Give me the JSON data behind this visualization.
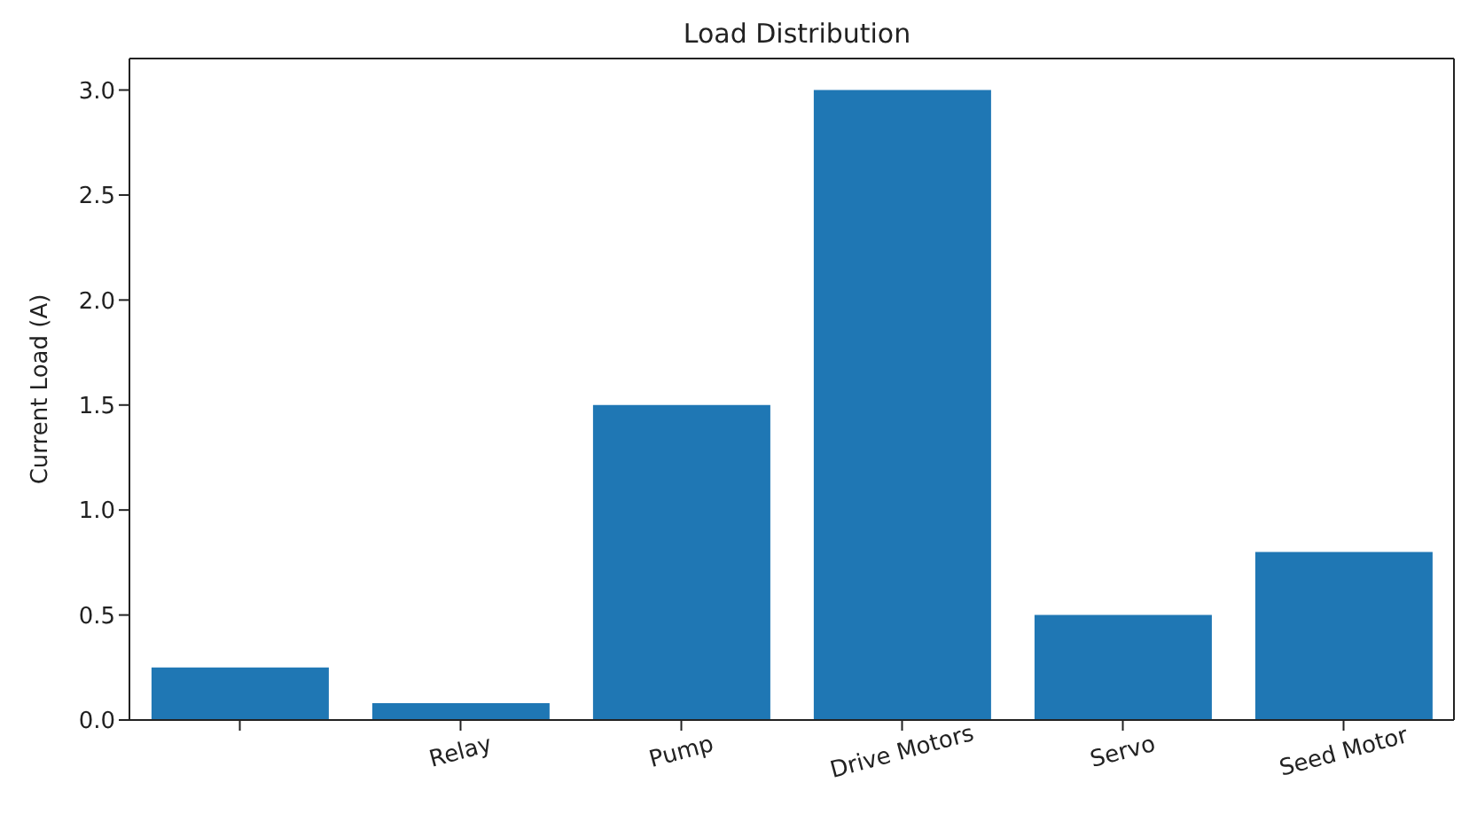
{
  "chart_data": {
    "type": "bar",
    "title": "Load Distribution",
    "ylabel": "Current Load (A)",
    "categories": [
      null,
      "Relay",
      "Pump",
      "Drive Motors",
      "Servo",
      "Seed Motor"
    ],
    "values": [
      0.25,
      0.08,
      1.5,
      3.0,
      0.5,
      0.8
    ],
    "color": "#1f77b4",
    "ylim": [
      0,
      3.15
    ],
    "yticks": [
      {
        "value": 0,
        "label": "0.0"
      },
      0.5,
      {
        "value": 1,
        "label": "1.0"
      },
      1.5,
      {
        "value": 2,
        "label": "2.0"
      },
      2.5,
      {
        "value": 3,
        "label": "3.0"
      }
    ],
    "grid": false
  }
}
